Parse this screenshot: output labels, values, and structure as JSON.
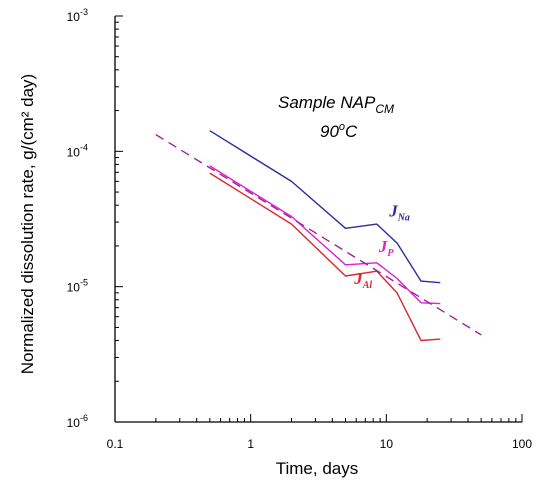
{
  "chart_data": {
    "type": "line",
    "xlabel": "Time, days",
    "ylabel": "Normalized dissolution rate, g/(cm² day)",
    "xscale": "log",
    "yscale": "log",
    "xlim": [
      0.1,
      100
    ],
    "ylim": [
      1e-06,
      0.001
    ],
    "x_ticks": [
      {
        "value": 0.1,
        "label": "0.1"
      },
      {
        "value": 1,
        "label": "1"
      },
      {
        "value": 10,
        "label": "10"
      },
      {
        "value": 100,
        "label": "100"
      }
    ],
    "y_ticks": [
      {
        "value": 1e-06,
        "base": "10",
        "exp": "-6"
      },
      {
        "value": 1e-05,
        "base": "10",
        "exp": "-5"
      },
      {
        "value": 0.0001,
        "base": "10",
        "exp": "-4"
      },
      {
        "value": 0.001,
        "base": "10",
        "exp": "-3"
      }
    ],
    "grid": false,
    "annotation": {
      "line1_main": "Sample NAP",
      "line1_sub": "CM",
      "line2_main": "90",
      "line2_sup": "o",
      "line2_tail": "C"
    },
    "series": [
      {
        "label_main": "J",
        "label_sub": "Na",
        "color": "#2b2f9e",
        "label_at": {
          "x": 10.5,
          "y": 3.3e-05
        },
        "points": [
          [
            0.5,
            0.000142
          ],
          [
            2,
            6e-05
          ],
          [
            5,
            2.7e-05
          ],
          [
            8.5,
            2.9e-05
          ],
          [
            12,
            2.1e-05
          ],
          [
            18,
            1.1e-05
          ],
          [
            25,
            1.07e-05
          ]
        ]
      },
      {
        "label_main": "J",
        "label_sub": "P",
        "color": "#e020d0",
        "label_at": {
          "x": 8.8,
          "y": 1.8e-05
        },
        "points": [
          [
            0.5,
            7.8e-05
          ],
          [
            2,
            3.3e-05
          ],
          [
            5,
            1.45e-05
          ],
          [
            8.5,
            1.5e-05
          ],
          [
            12,
            1.15e-05
          ],
          [
            18,
            7.6e-06
          ],
          [
            25,
            7.5e-06
          ]
        ]
      },
      {
        "label_main": "J",
        "label_sub": "Al",
        "color": "#e0262e",
        "label_at": {
          "x": 5.8,
          "y": 1.05e-05
        },
        "points": [
          [
            0.5,
            6.9e-05
          ],
          [
            2,
            2.9e-05
          ],
          [
            5,
            1.2e-05
          ],
          [
            8.5,
            1.3e-05
          ],
          [
            12,
            9e-06
          ],
          [
            18,
            4e-06
          ],
          [
            25,
            4.1e-06
          ]
        ]
      },
      {
        "style": "dashed",
        "color": "#a020a0",
        "points": [
          [
            0.2,
            0.000133
          ],
          [
            50,
            4.4e-06
          ]
        ]
      }
    ]
  }
}
